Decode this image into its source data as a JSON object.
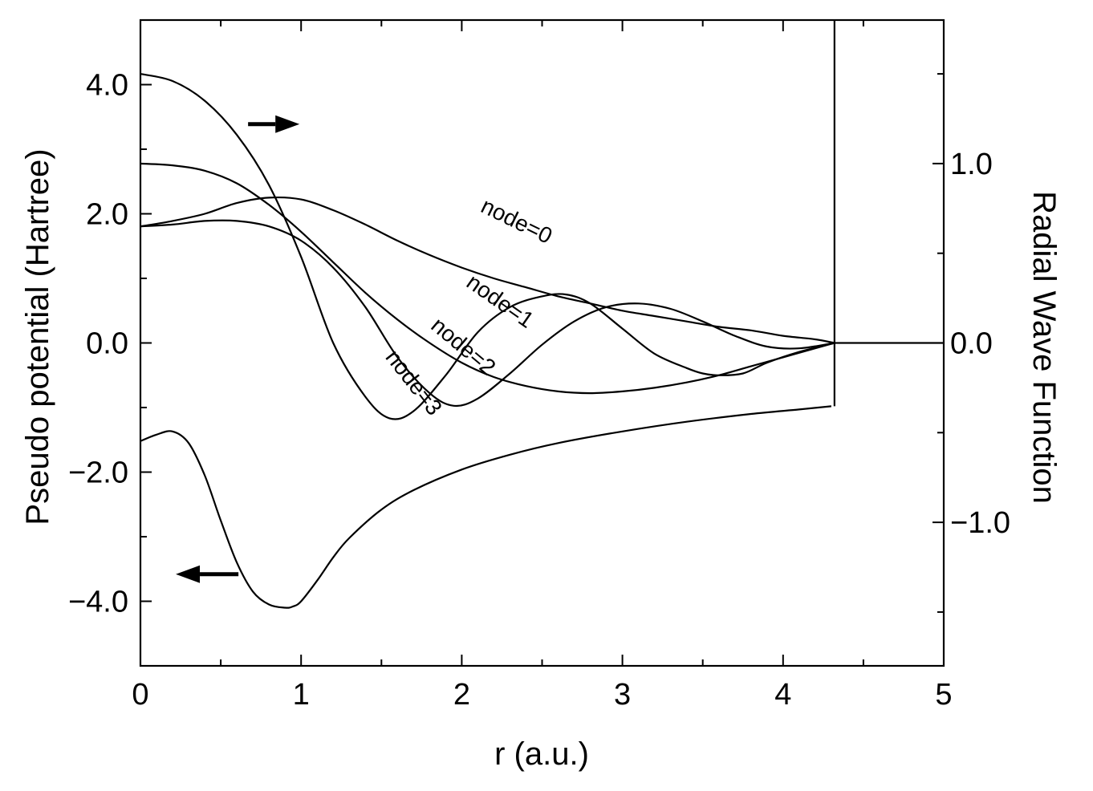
{
  "chart_data": {
    "type": "line",
    "title": "",
    "xlabel": "r (a.u.)",
    "ylabel_left": "Pseudo potential (Hartree)",
    "ylabel_right": "Radial Wave Function",
    "xlim": [
      0,
      5
    ],
    "ylim_left": [
      -5,
      5
    ],
    "ylim_right": [
      -1.8,
      1.8
    ],
    "grid": false,
    "x_ticks": [
      {
        "value": 0,
        "label": "0"
      },
      {
        "value": 1,
        "label": "1"
      },
      {
        "value": 2,
        "label": "2"
      },
      {
        "value": 3,
        "label": "3"
      },
      {
        "value": 4,
        "label": "4"
      },
      {
        "value": 5,
        "label": "5"
      }
    ],
    "y_left_ticks": [
      {
        "value": 4,
        "label": "4.0"
      },
      {
        "value": 2,
        "label": "2.0"
      },
      {
        "value": 0,
        "label": "0.0"
      },
      {
        "value": -2,
        "label": "−2.0"
      },
      {
        "value": -4,
        "label": "−4.0"
      }
    ],
    "y_right_ticks": [
      {
        "value": 1,
        "label": "1.0"
      },
      {
        "value": 0,
        "label": "0.0"
      },
      {
        "value": -1,
        "label": "−1.0"
      }
    ],
    "annotations": [
      {
        "text": "node=0",
        "x": 2.11,
        "y": 0.735,
        "axis": "right",
        "angle": 26
      },
      {
        "text": "node=1",
        "x": 2.02,
        "y": 0.32,
        "axis": "right",
        "angle": 35
      },
      {
        "text": "node=2",
        "x": 1.8,
        "y": 0.085,
        "axis": "right",
        "angle": 40
      },
      {
        "text": "node=3",
        "x": 1.52,
        "y": -0.08,
        "axis": "right",
        "angle": 52
      }
    ],
    "arrows": [
      {
        "direction": "right",
        "axis": "right",
        "x_from": 0.67,
        "x_to": 0.99,
        "y": 1.22
      },
      {
        "direction": "left",
        "axis": "left",
        "x_from": 0.61,
        "x_to": 0.22,
        "y": -3.58
      }
    ],
    "series": [
      {
        "axis": "left",
        "x": [
          0,
          0.1,
          0.2,
          0.3,
          0.4,
          0.5,
          0.6,
          0.7,
          0.8,
          0.9,
          0.95,
          1.0,
          1.1,
          1.2,
          1.3,
          1.5,
          1.7,
          2.0,
          2.3,
          2.6,
          3.0,
          3.4,
          3.8,
          4.1,
          4.3
        ],
        "y": [
          -1.52,
          -1.42,
          -1.37,
          -1.55,
          -2.05,
          -2.75,
          -3.4,
          -3.85,
          -4.05,
          -4.1,
          -4.08,
          -4.0,
          -3.68,
          -3.32,
          -3.02,
          -2.58,
          -2.28,
          -1.96,
          -1.73,
          -1.55,
          -1.37,
          -1.22,
          -1.1,
          -1.03,
          -0.98
        ]
      },
      {
        "axis": "right",
        "x": [
          0,
          0.2,
          0.4,
          0.6,
          0.8,
          1.0,
          1.2,
          1.4,
          1.6,
          1.8,
          2.0,
          2.2,
          2.4,
          2.6,
          2.8,
          3.0,
          3.2,
          3.4,
          3.6,
          3.8,
          4.0,
          4.2,
          4.32
        ],
        "y": [
          0.65,
          0.68,
          0.72,
          0.78,
          0.81,
          0.8,
          0.74,
          0.66,
          0.57,
          0.49,
          0.42,
          0.36,
          0.31,
          0.26,
          0.22,
          0.18,
          0.15,
          0.12,
          0.09,
          0.07,
          0.04,
          0.02,
          0.0
        ]
      },
      {
        "axis": "right",
        "x": [
          0,
          0.2,
          0.4,
          0.6,
          0.8,
          1.0,
          1.2,
          1.4,
          1.6,
          1.8,
          2.0,
          2.2,
          2.4,
          2.6,
          2.8,
          3.0,
          3.2,
          3.4,
          3.6,
          3.8,
          4.0,
          4.2,
          4.32
        ],
        "y": [
          1.0,
          0.99,
          0.96,
          0.89,
          0.77,
          0.62,
          0.45,
          0.28,
          0.13,
          0.0,
          -0.11,
          -0.19,
          -0.24,
          -0.27,
          -0.28,
          -0.27,
          -0.25,
          -0.22,
          -0.18,
          -0.13,
          -0.08,
          -0.03,
          0.0
        ]
      },
      {
        "axis": "right",
        "x": [
          0,
          0.2,
          0.4,
          0.6,
          0.8,
          1.0,
          1.2,
          1.4,
          1.6,
          1.8,
          1.95,
          2.1,
          2.3,
          2.5,
          2.7,
          2.9,
          3.1,
          3.3,
          3.5,
          3.7,
          3.9,
          4.1,
          4.32
        ],
        "y": [
          0.65,
          0.66,
          0.68,
          0.68,
          0.65,
          0.57,
          0.42,
          0.2,
          -0.08,
          -0.28,
          -0.35,
          -0.31,
          -0.17,
          -0.01,
          0.12,
          0.2,
          0.22,
          0.19,
          0.12,
          0.04,
          -0.02,
          -0.03,
          0.0
        ]
      },
      {
        "axis": "right",
        "x": [
          0,
          0.2,
          0.4,
          0.6,
          0.8,
          1.0,
          1.2,
          1.4,
          1.55,
          1.7,
          1.9,
          2.1,
          2.3,
          2.5,
          2.65,
          2.8,
          3.0,
          3.2,
          3.4,
          3.5,
          3.6,
          3.75,
          3.9,
          4.1,
          4.32
        ],
        "y": [
          1.5,
          1.46,
          1.35,
          1.16,
          0.88,
          0.48,
          0.0,
          -0.3,
          -0.42,
          -0.38,
          -0.18,
          0.06,
          0.2,
          0.26,
          0.27,
          0.22,
          0.08,
          -0.06,
          -0.14,
          -0.17,
          -0.18,
          -0.17,
          -0.11,
          -0.05,
          0.0
        ]
      }
    ],
    "vertical_segments": [
      {
        "axis": "left",
        "x": 4.32,
        "y_from": -0.98,
        "y_to": 5.0
      }
    ],
    "flat_segment": {
      "axis": "right",
      "x_from": 4.32,
      "x_to": 5.0,
      "y": 0.0
    }
  }
}
